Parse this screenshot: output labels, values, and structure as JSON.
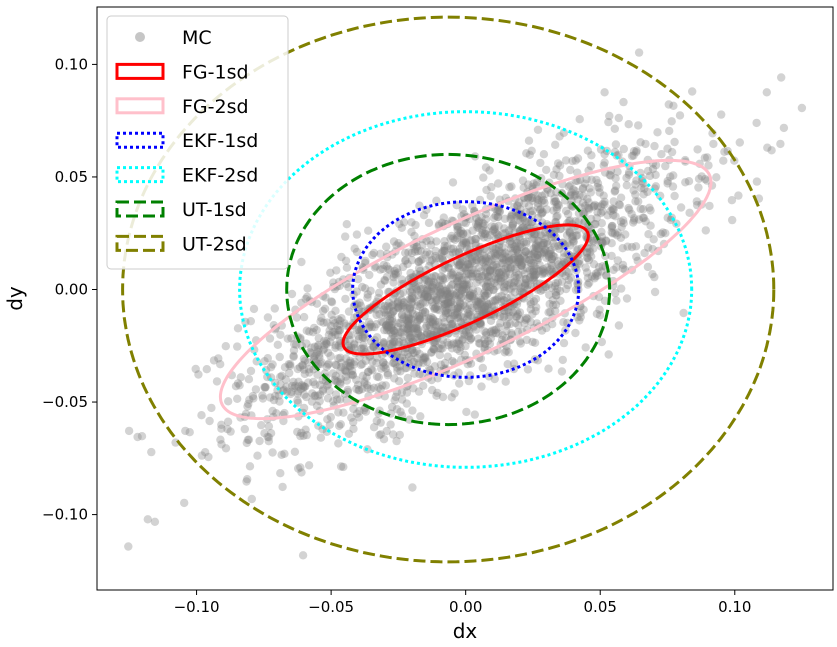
{
  "chart_data": {
    "type": "scatter",
    "xlabel": "dx",
    "ylabel": "dy",
    "xlim": [
      -0.137,
      0.1365
    ],
    "ylim": [
      -0.1335,
      0.1255
    ],
    "xticks": [
      -0.1,
      -0.05,
      0.0,
      0.05,
      0.1
    ],
    "xtick_labels": [
      "−0.10",
      "−0.05",
      "0.00",
      "0.05",
      "0.10"
    ],
    "yticks": [
      -0.1,
      -0.05,
      0.0,
      0.05,
      0.1
    ],
    "ytick_labels": [
      "−0.10",
      "−0.05",
      "0.00",
      "0.05",
      "0.10"
    ],
    "grid": false,
    "legend_position": "top-left",
    "mc_samples": {
      "name": "MC",
      "color": "#808080",
      "alpha": 0.35,
      "count": 2500,
      "distribution": "correlated bivariate cloud",
      "mean": [
        0.0,
        0.0
      ],
      "std": [
        0.039,
        0.03
      ],
      "correlation": 0.75
    },
    "ellipses": [
      {
        "name": "FG-1sd",
        "color": "#ff0000",
        "style": "solid",
        "center": [
          0.0,
          0.0
        ],
        "semi_axes": [
          0.052,
          0.014
        ],
        "angle_deg": 30
      },
      {
        "name": "FG-2sd",
        "color": "#ffc0cb",
        "style": "solid",
        "center": [
          0.0,
          0.0
        ],
        "semi_axes": [
          0.104,
          0.028
        ],
        "angle_deg": 30
      },
      {
        "name": "EKF-1sd",
        "color": "#0000ff",
        "style": "dotted",
        "center": [
          0.0,
          0.0
        ],
        "semi_axes": [
          0.042,
          0.039
        ],
        "angle_deg": 0
      },
      {
        "name": "EKF-2sd",
        "color": "#00ffff",
        "style": "dotted",
        "center": [
          0.0,
          0.0
        ],
        "semi_axes": [
          0.084,
          0.079
        ],
        "angle_deg": 0
      },
      {
        "name": "UT-1sd",
        "color": "#008000",
        "style": "dashed",
        "center": [
          -0.0065,
          0.0
        ],
        "semi_axes": [
          0.06,
          0.06
        ],
        "angle_deg": 0
      },
      {
        "name": "UT-2sd",
        "color": "#808000",
        "style": "dashed",
        "center": [
          -0.0065,
          0.0
        ],
        "semi_axes": [
          0.121,
          0.121
        ],
        "angle_deg": 0
      }
    ]
  }
}
